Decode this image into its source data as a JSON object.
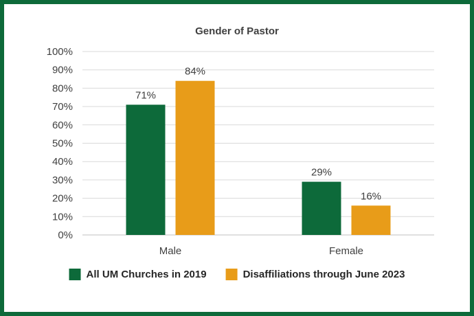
{
  "chart_data": {
    "type": "bar",
    "title": "Gender of Pastor",
    "categories": [
      "Male",
      "Female"
    ],
    "series": [
      {
        "name": "All UM Churches in 2019",
        "color": "#0d6a3a",
        "values": [
          71,
          29
        ],
        "labels": [
          "71%",
          "29%"
        ]
      },
      {
        "name": "Disaffiliations through June 2023",
        "color": "#e89c19",
        "values": [
          84,
          16
        ],
        "labels": [
          "84%",
          "16%"
        ]
      }
    ],
    "ylim": [
      0,
      100
    ],
    "yticks": [
      "0%",
      "10%",
      "20%",
      "30%",
      "40%",
      "50%",
      "60%",
      "70%",
      "80%",
      "90%",
      "100%"
    ],
    "xlabel": "",
    "ylabel": "",
    "grid": true,
    "legend": "bottom"
  }
}
